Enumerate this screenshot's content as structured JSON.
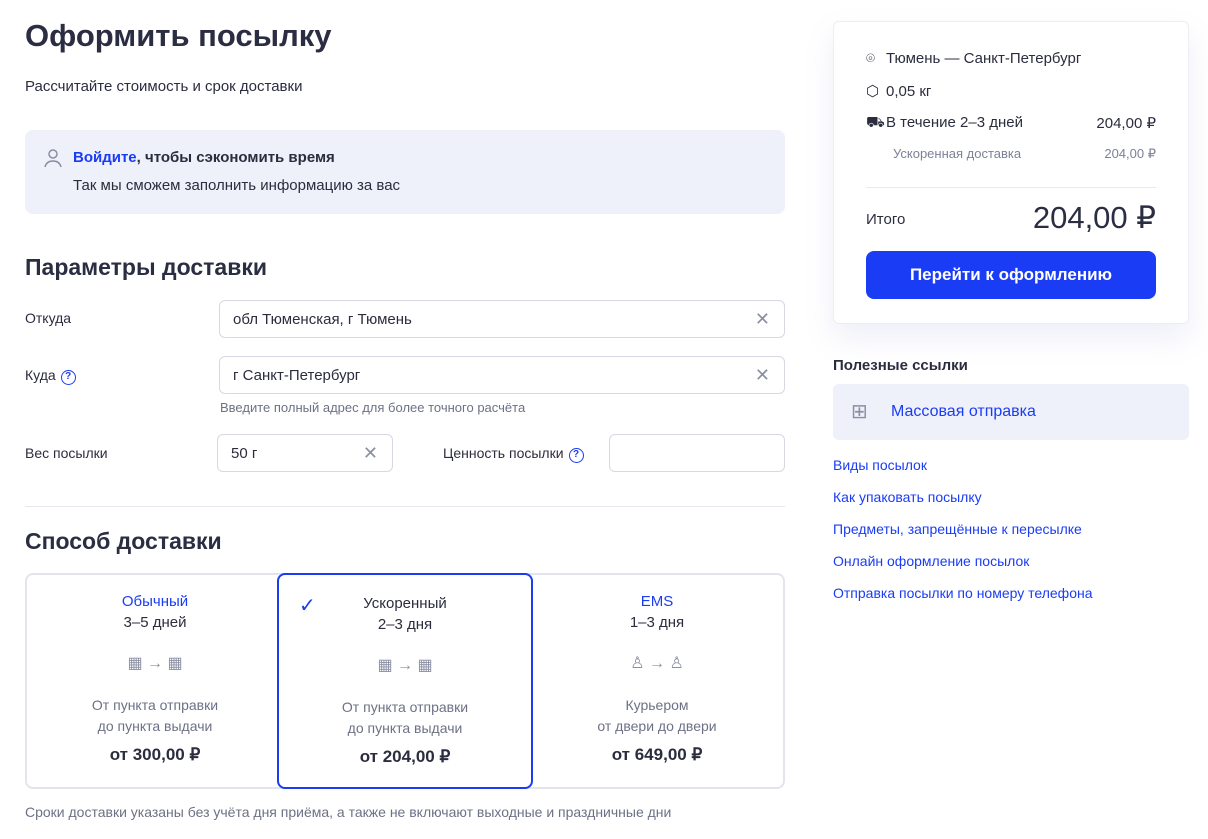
{
  "page": {
    "title": "Оформить посылку",
    "subtitle": "Рассчитайте стоимость и срок доставки"
  },
  "login": {
    "link": "Войдите",
    "text": ", чтобы сэкономить время",
    "line2": "Так мы сможем заполнить информацию за вас"
  },
  "params": {
    "heading": "Параметры доставки",
    "from": {
      "label": "Откуда",
      "value": "обл Тюменская, г Тюмень"
    },
    "to": {
      "label": "Куда",
      "value": "г Санкт-Петербург",
      "hint": "Введите полный адрес для более точного расчёта"
    },
    "weight": {
      "label": "Вес посылки",
      "value": "50 г"
    },
    "declared": {
      "label": "Ценность посылки",
      "value": ""
    }
  },
  "delivery": {
    "heading": "Способ доставки",
    "options": [
      {
        "title": "Обычный",
        "days": "3–5 дней",
        "desc1": "От пункта отправки",
        "desc2": "до пункта выдачи",
        "price": "от 300,00 ₽",
        "selected": false
      },
      {
        "title": "Ускоренный",
        "days": "2–3 дня",
        "desc1": "От пункта отправки",
        "desc2": "до пункта выдачи",
        "price": "от 204,00 ₽",
        "selected": true
      },
      {
        "title": "EMS",
        "days": "1–3 дня",
        "desc1": "Курьером",
        "desc2": "от двери до двери",
        "price": "от 649,00 ₽",
        "selected": false
      }
    ],
    "note": "Сроки доставки указаны без учёта дня приёма, а также не включают выходные и праздничные дни"
  },
  "summary": {
    "route": "Тюмень — Санкт-Петербург",
    "weight": "0,05 кг",
    "term": "В течение 2–3 дней",
    "term_price": "204,00 ₽",
    "service": "Ускоренная доставка",
    "service_price": "204,00 ₽",
    "total_label": "Итого",
    "total": "204,00 ₽",
    "button": "Перейти к оформлению"
  },
  "links": {
    "heading": "Полезные ссылки",
    "mass": "Массовая отправка",
    "items": [
      "Виды посылок",
      "Как упаковать посылку",
      "Предметы, запрещённые к пересылке",
      "Онлайн оформление посылок",
      "Отправка посылки по номеру телефона"
    ]
  },
  "colors": {
    "accent": "#1a3cf5",
    "panel": "#eef0fa"
  }
}
